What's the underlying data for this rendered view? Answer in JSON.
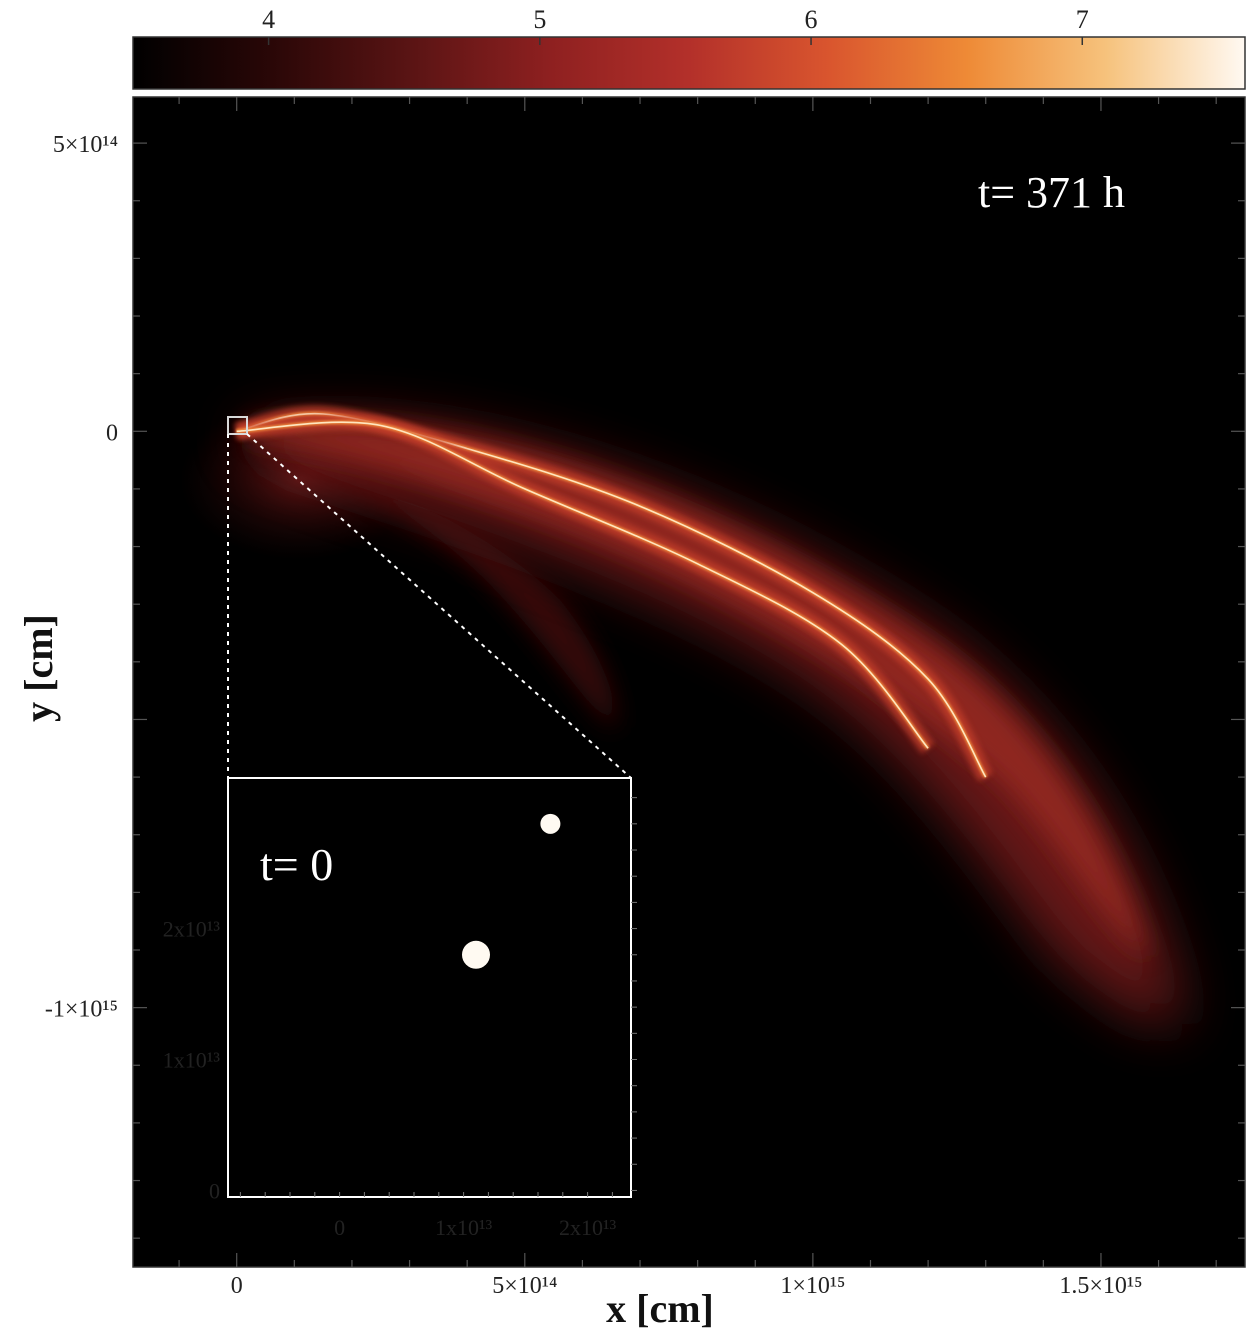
{
  "chart_data": {
    "type": "heatmap",
    "colorbar": {
      "ticks": [
        "4",
        "5",
        "6",
        "7"
      ],
      "tick_values": [
        4,
        5,
        6,
        7
      ],
      "range": [
        3.5,
        7.6
      ],
      "colormap": [
        "#000000",
        "#2a0707",
        "#5a1414",
        "#8e2020",
        "#b3302a",
        "#d9552e",
        "#ee8a36",
        "#f6c27c",
        "#fff9f2"
      ]
    },
    "main": {
      "xlabel": "x [cm]",
      "ylabel": "y [cm]",
      "xlim": [
        -180000000000000.0,
        1750000000000000.0
      ],
      "ylim": [
        -1450000000000000.0,
        580000000000000.0
      ],
      "xticks": [
        {
          "value": 0,
          "label": "0"
        },
        {
          "value": 500000000000000.0,
          "label": "5×10¹⁴"
        },
        {
          "value": 1000000000000000.0,
          "label": "1×10¹⁵"
        },
        {
          "value": 1500000000000000.0,
          "label": "1.5×10¹⁵"
        }
      ],
      "yticks": [
        {
          "value": 500000000000000.0,
          "label": "5×10¹⁴"
        },
        {
          "value": 0,
          "label": "0"
        },
        {
          "value": -1000000000000000.0,
          "label": "-1×10¹⁵"
        }
      ],
      "annotation": "t= 371 h",
      "streams": [
        {
          "name": "outer-arc",
          "x": [
            0,
            150000000000000.0,
            400000000000000.0,
            700000000000000.0,
            1000000000000000.0,
            1200000000000000.0,
            1300000000000000.0
          ],
          "y": [
            0,
            30000000000000.0,
            -30000000000000.0,
            -130000000000000.0,
            -280000000000000.0,
            -430000000000000.0,
            -600000000000000.0
          ]
        },
        {
          "name": "inner-arc",
          "x": [
            0,
            250000000000000.0,
            500000000000000.0,
            800000000000000.0,
            1050000000000000.0,
            1200000000000000.0
          ],
          "y": [
            0,
            10000000000000.0,
            -100000000000000.0,
            -230000000000000.0,
            -370000000000000.0,
            -550000000000000.0
          ]
        }
      ]
    },
    "inset": {
      "annotation": "t= 0",
      "xticks": [
        {
          "value": 0,
          "label": "0"
        },
        {
          "value": 10000000000000.0,
          "label": "1x10¹³"
        },
        {
          "value": 20000000000000.0,
          "label": "2x10¹³"
        }
      ],
      "yticks": [
        {
          "value": 0,
          "label": "0"
        },
        {
          "value": 10000000000000.0,
          "label": "1x10¹³"
        },
        {
          "value": 20000000000000.0,
          "label": "2x10¹³"
        }
      ],
      "points": [
        {
          "name": "star-1",
          "x": 11000000000000.0,
          "y": 18000000000000.0
        },
        {
          "name": "star-2",
          "x": 17000000000000.0,
          "y": 28000000000000.0
        }
      ]
    }
  }
}
